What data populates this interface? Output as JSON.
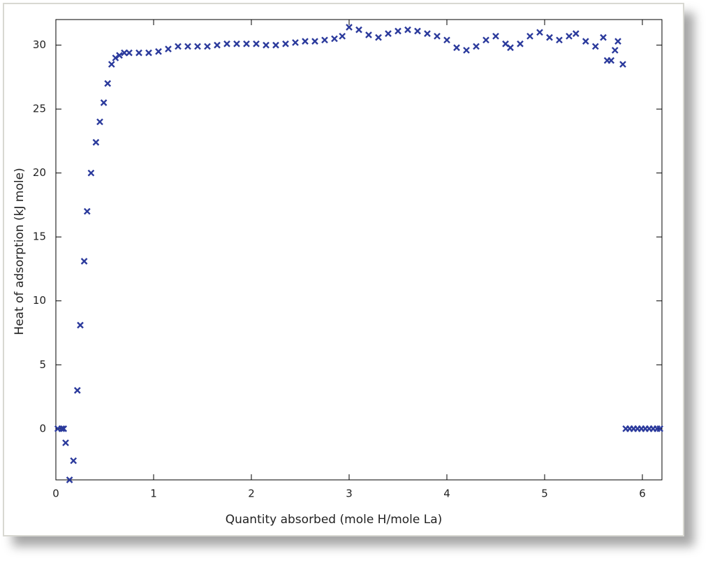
{
  "chart_data": {
    "type": "scatter",
    "x_label": "Quantity absorbed (mole H/mole La)",
    "y_label": "Heat of adsorption (kJ mole)",
    "color": "#2b3a9c",
    "xlim": [
      0,
      6.2
    ],
    "ylim": [
      -4,
      32
    ],
    "xticks": [
      0,
      1,
      2,
      3,
      4,
      5,
      6
    ],
    "yticks": [
      0,
      5,
      10,
      15,
      20,
      25,
      30
    ],
    "x": [
      0.02,
      0.06,
      0.08,
      0.1,
      0.14,
      0.18,
      0.22,
      0.25,
      0.29,
      0.32,
      0.36,
      0.41,
      0.45,
      0.49,
      0.53,
      0.57,
      0.61,
      0.65,
      0.7,
      0.75,
      0.85,
      0.95,
      1.05,
      1.15,
      1.25,
      1.35,
      1.45,
      1.55,
      1.65,
      1.75,
      1.85,
      1.95,
      2.05,
      2.15,
      2.25,
      2.35,
      2.45,
      2.55,
      2.65,
      2.75,
      2.85,
      2.93,
      3.0,
      3.1,
      3.2,
      3.3,
      3.4,
      3.5,
      3.6,
      3.7,
      3.8,
      3.9,
      4.0,
      4.1,
      4.2,
      4.3,
      4.4,
      4.5,
      4.6,
      4.65,
      4.75,
      4.85,
      4.95,
      5.05,
      5.15,
      5.25,
      5.32,
      5.42,
      5.52,
      5.6,
      5.64,
      5.68,
      5.72,
      5.75,
      5.8,
      5.83,
      5.87,
      5.91,
      5.95,
      5.99,
      6.03,
      6.07,
      6.11,
      6.15,
      6.18
    ],
    "values": [
      0,
      0,
      0,
      -1.1,
      -4,
      -2.5,
      3,
      8.1,
      13.1,
      17,
      20,
      22.4,
      24,
      25.5,
      27,
      28.5,
      29,
      29.2,
      29.4,
      29.4,
      29.4,
      29.4,
      29.5,
      29.7,
      29.9,
      29.9,
      29.9,
      29.9,
      30.0,
      30.1,
      30.1,
      30.1,
      30.1,
      30.0,
      30.0,
      30.1,
      30.2,
      30.3,
      30.3,
      30.4,
      30.5,
      30.7,
      31.4,
      31.2,
      30.8,
      30.6,
      30.9,
      31.1,
      31.2,
      31.1,
      30.9,
      30.7,
      30.4,
      29.8,
      29.6,
      29.9,
      30.4,
      30.7,
      30.1,
      29.8,
      30.1,
      30.7,
      31.0,
      30.6,
      30.4,
      30.7,
      30.9,
      30.3,
      29.9,
      30.6,
      28.8,
      28.8,
      29.6,
      30.3,
      28.5,
      0,
      0,
      0,
      0,
      0,
      0,
      0,
      0,
      0,
      0
    ]
  }
}
